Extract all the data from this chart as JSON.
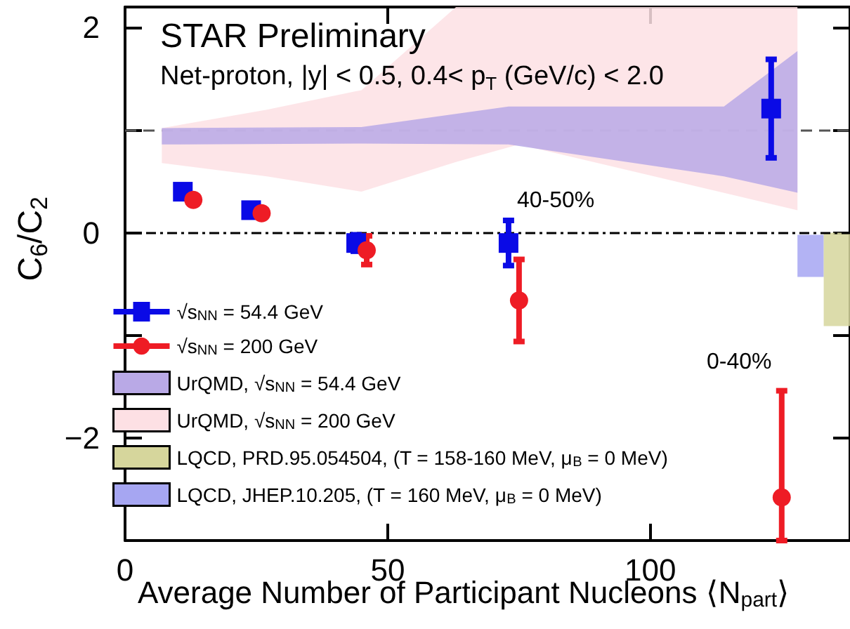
{
  "chart_data": {
    "type": "scatter",
    "xlabel": "Average Number of Participant Nucleons ⟨N$_{part}$⟩",
    "ylabel": "C$_{6}$/C$_{2}$",
    "annotations": [
      "STAR Preliminary",
      "Net-proton, |y| < 0.5, 0.4< p$_{T}$ (GeV/c) < 2.0",
      "40-50%",
      "0-40%"
    ],
    "xlim": [
      0,
      138
    ],
    "ylim": [
      -3,
      2.2
    ],
    "xticks": [
      0,
      50,
      100
    ],
    "yticks": [
      {
        "value": -2,
        "label": "−2"
      },
      {
        "value": -1,
        "label": null
      },
      0,
      {
        "value": 1,
        "label": null
      },
      2
    ],
    "series": [
      {
        "name": "√s$_{NN}$ = 54.4 GeV",
        "marker": "square",
        "color": "#0a0ae6",
        "x": [
          11,
          24,
          44,
          73,
          123
        ],
        "values": [
          0.4,
          0.22,
          -0.1,
          -0.1,
          1.21
        ],
        "errors": [
          null,
          null,
          0.08,
          0.22,
          0.48
        ]
      },
      {
        "name": "√s$_{NN}$ = 200 GeV",
        "marker": "circle",
        "color": "#ee1c25",
        "x": [
          13,
          26,
          46,
          75,
          125
        ],
        "values": [
          0.32,
          0.19,
          -0.17,
          -0.66,
          -2.58
        ],
        "errors": [
          null,
          null,
          0.14,
          0.4,
          [
            -3.0,
            -1.54
          ]
        ]
      },
      {
        "name": "UrQMD, √s$_{NN}$ = 54.4 GeV",
        "type": "area",
        "color": "#b9a9e6",
        "x": [
          7,
          45,
          73,
          114,
          128
        ],
        "values": [
          null,
          null,
          null,
          null,
          null
        ],
        "lower": [
          0.86,
          0.87,
          0.86,
          0.55,
          0.39
        ],
        "upper": [
          1.02,
          1.03,
          1.23,
          1.23,
          1.77
        ]
      },
      {
        "name": "UrQMD, √s$_{NN}$ = 200 GeV",
        "type": "area",
        "color": "#fde0e4",
        "x": [
          7,
          27,
          45,
          63,
          75,
          128
        ],
        "values": [
          null,
          null,
          null,
          null,
          null,
          null
        ],
        "lower": [
          0.68,
          0.55,
          0.4,
          0.69,
          0.86,
          0.22
        ],
        "upper": [
          1.02,
          1.2,
          1.39,
          2.2,
          2.2,
          2.2
        ]
      },
      {
        "name": "LQCD, PRD.95.054504, (T = 158-160 MeV, μ$_{B}$ = 0 MeV)",
        "type": "area",
        "color": "#d6d69c",
        "x": [
          133,
          138
        ],
        "values": [
          null,
          null
        ],
        "lower": [
          -0.91,
          -0.91
        ],
        "upper": [
          0,
          0
        ]
      },
      {
        "name": "LQCD, JHEP.10.205, (T = 160 MeV, μ$_{B}$ = 0 MeV)",
        "type": "area",
        "color": "#a6a6f2",
        "x": [
          128,
          133
        ],
        "values": [
          null,
          null
        ],
        "lower": [
          -0.43,
          -0.43
        ],
        "upper": [
          -0.02,
          -0.02
        ]
      }
    ],
    "ref_lines": [
      {
        "axis": "y",
        "value": 1,
        "line_style": "dashed",
        "color": "#555555"
      },
      {
        "axis": "y",
        "value": 0,
        "line_style": "dashdot",
        "color": "#000000"
      }
    ],
    "grid": false,
    "legend": "bottom left"
  }
}
